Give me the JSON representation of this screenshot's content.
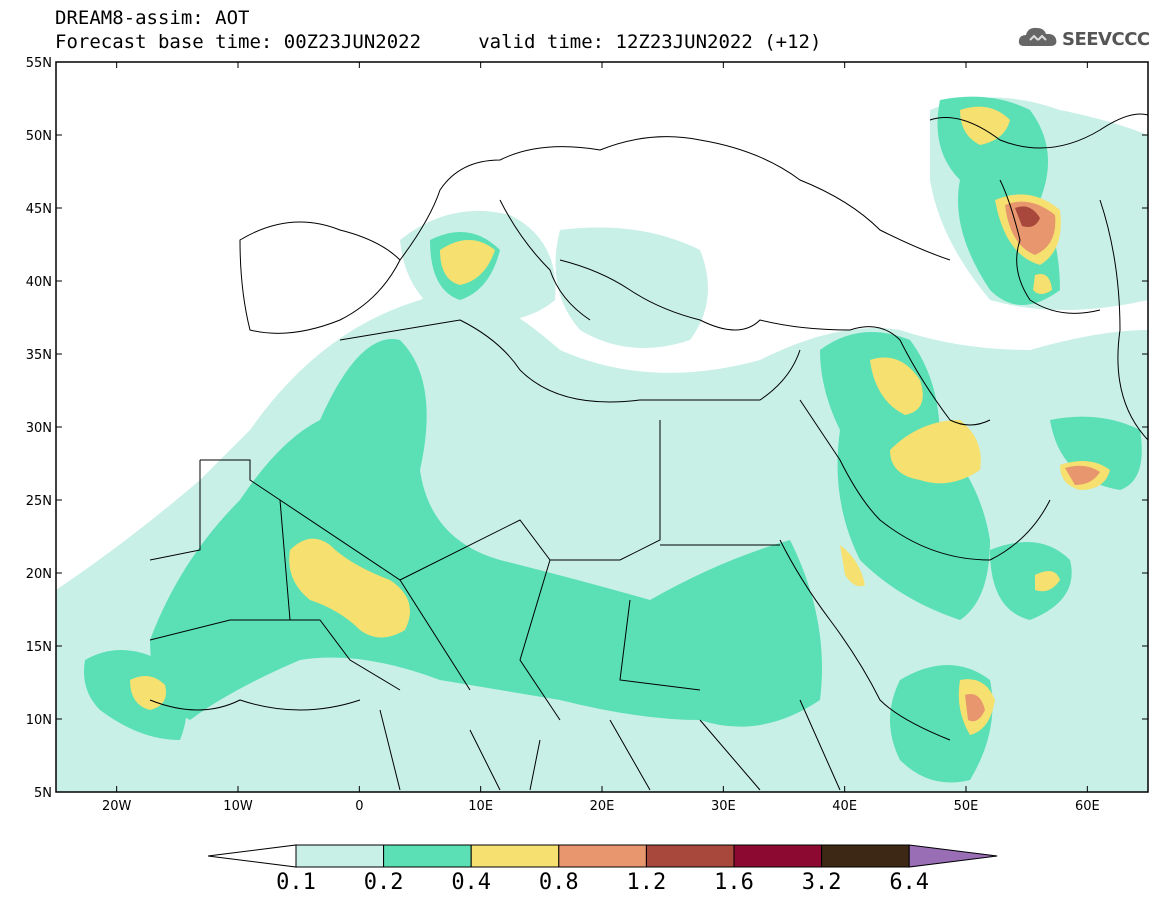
{
  "header": {
    "title": "DREAM8-assim: AOT",
    "subtitle": "Forecast base time: 00Z23JUN2022     valid time: 12Z23JUN2022 (+12)"
  },
  "logo": {
    "text": "SEEVCCC",
    "icon": "cloud-icon"
  },
  "axes": {
    "lat_ticks": [
      "55N",
      "50N",
      "45N",
      "40N",
      "35N",
      "30N",
      "25N",
      "20N",
      "15N",
      "10N",
      "5N"
    ],
    "lon_ticks": [
      "20W",
      "10W",
      "0",
      "10E",
      "20E",
      "30E",
      "40E",
      "50E",
      "60E"
    ],
    "lon_range": [
      -25,
      65
    ],
    "lat_range": [
      5,
      55
    ]
  },
  "colorbar": {
    "levels": [
      "0.1",
      "0.2",
      "0.4",
      "0.8",
      "1.2",
      "1.6",
      "3.2",
      "6.4"
    ],
    "colors": [
      "#ffffff",
      "#c8f0e6",
      "#5ae0b4",
      "#f5e070",
      "#e8966e",
      "#a8483c",
      "#8c0a32",
      "#3c2814",
      "#9a6eb4"
    ]
  }
}
